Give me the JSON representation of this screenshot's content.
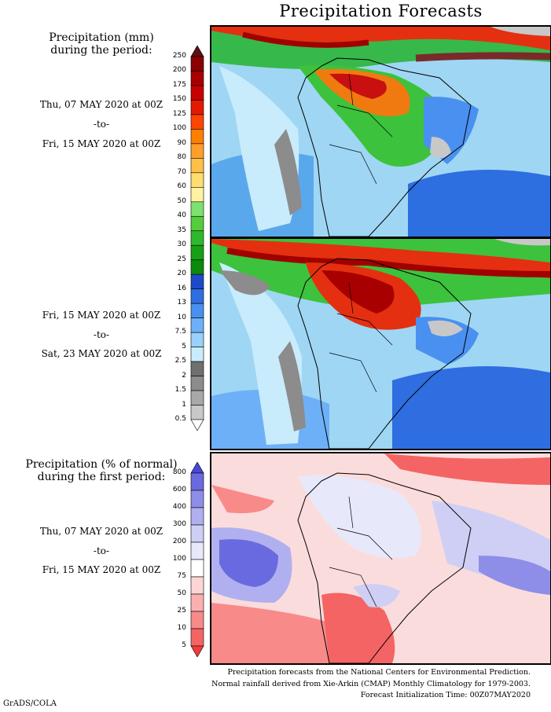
{
  "title": "Precipitation Forecasts",
  "panel1": {
    "heading_line1": "Precipitation (mm)",
    "heading_line2": "during the period:",
    "start": "Thu, 07 MAY 2020 at 00Z",
    "to": "-to-",
    "end": "Fri, 15 MAY 2020 at 00Z"
  },
  "panel2": {
    "start": "Fri, 15 MAY 2020 at 00Z",
    "to": "-to-",
    "end": "Sat, 23 MAY 2020 at 00Z"
  },
  "panel3": {
    "heading_line1": "Precipitation (% of normal)",
    "heading_line2": "during the first period:",
    "start": "Thu, 07 MAY 2020 at 00Z",
    "to": "-to-",
    "end": "Fri, 15 MAY 2020 at 00Z"
  },
  "colorbar_mm": {
    "labels": [
      "250",
      "200",
      "175",
      "150",
      "125",
      "100",
      "90",
      "80",
      "70",
      "60",
      "50",
      "40",
      "35",
      "30",
      "25",
      "20",
      "16",
      "13",
      "10",
      "7.5",
      "5",
      "2.5",
      "2",
      "1.5",
      "1",
      "0.5"
    ],
    "colors": [
      "#5a1010",
      "#8b0000",
      "#a80000",
      "#c80000",
      "#e41a00",
      "#ff4500",
      "#ff7f00",
      "#ff9f2a",
      "#ffc04a",
      "#ffdd70",
      "#fff2a0",
      "#7de070",
      "#55cc3c",
      "#2eb82e",
      "#17a017",
      "#0b8a0b",
      "#1e4ac8",
      "#2f6ee0",
      "#4a90f0",
      "#6eb0f8",
      "#9ad0fc",
      "#c8ecfc",
      "#707070",
      "#8c8c8c",
      "#a8a8a8",
      "#c8c8c8",
      "#ffffff"
    ]
  },
  "colorbar_pct": {
    "labels": [
      "800",
      "600",
      "400",
      "300",
      "200",
      "100",
      "75",
      "50",
      "25",
      "10",
      "5"
    ],
    "colors": [
      "#4848d8",
      "#6a6ae0",
      "#8e8ee8",
      "#b0b0f0",
      "#cfcff6",
      "#e8e8fb",
      "#ffffff",
      "#fcd6d6",
      "#fbb0b0",
      "#f88a8a",
      "#f46464",
      "#f03c3c"
    ]
  },
  "footer": {
    "line1": "Precipitation forecasts from the National Centers for Environmental Prediction.",
    "line2": "Normal rainfall derived from Xie-Arkin (CMAP) Monthly Climatology for 1979-2003.",
    "line3": "Forecast Initialization Time: 00Z07MAY2020"
  },
  "credit": "GrADS/COLA"
}
